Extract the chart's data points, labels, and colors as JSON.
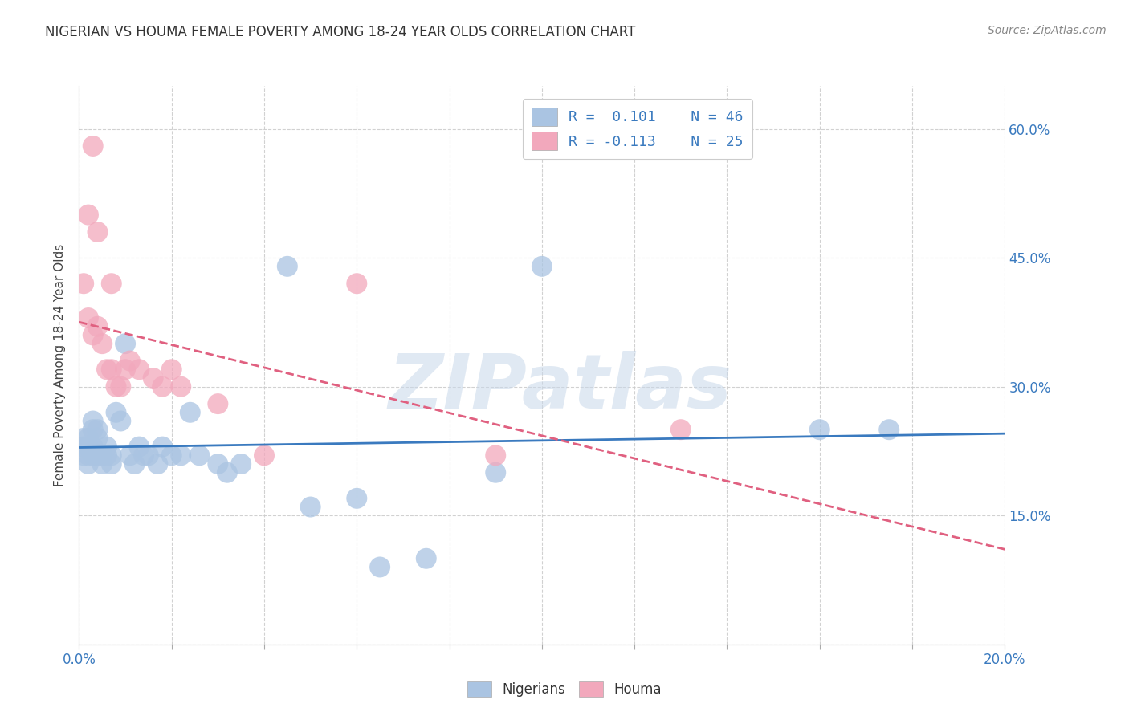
{
  "title": "NIGERIAN VS HOUMA FEMALE POVERTY AMONG 18-24 YEAR OLDS CORRELATION CHART",
  "source": "Source: ZipAtlas.com",
  "ylabel": "Female Poverty Among 18-24 Year Olds",
  "xlim": [
    0.0,
    0.2
  ],
  "ylim": [
    0.0,
    0.65
  ],
  "watermark": "ZIPatlas",
  "legend_r1": "R =  0.101",
  "legend_n1": "N = 46",
  "legend_r2": "R = -0.113",
  "legend_n2": "N = 25",
  "nigerian_color": "#aac4e2",
  "houma_color": "#f2a8bc",
  "nigerian_line_color": "#3a7abf",
  "houma_line_color": "#e06080",
  "background_color": "#ffffff",
  "nigerian_x": [
    0.001,
    0.001,
    0.001,
    0.002,
    0.002,
    0.002,
    0.002,
    0.003,
    0.003,
    0.003,
    0.003,
    0.004,
    0.004,
    0.004,
    0.005,
    0.005,
    0.006,
    0.006,
    0.007,
    0.007,
    0.008,
    0.009,
    0.01,
    0.011,
    0.012,
    0.013,
    0.014,
    0.015,
    0.017,
    0.018,
    0.02,
    0.022,
    0.024,
    0.026,
    0.03,
    0.032,
    0.035,
    0.045,
    0.05,
    0.06,
    0.065,
    0.075,
    0.09,
    0.1,
    0.16,
    0.175
  ],
  "nigerian_y": [
    0.24,
    0.23,
    0.22,
    0.24,
    0.23,
    0.22,
    0.21,
    0.26,
    0.25,
    0.23,
    0.22,
    0.25,
    0.24,
    0.22,
    0.22,
    0.21,
    0.23,
    0.22,
    0.22,
    0.21,
    0.27,
    0.26,
    0.35,
    0.22,
    0.21,
    0.23,
    0.22,
    0.22,
    0.21,
    0.23,
    0.22,
    0.22,
    0.27,
    0.22,
    0.21,
    0.2,
    0.21,
    0.44,
    0.16,
    0.17,
    0.09,
    0.1,
    0.2,
    0.44,
    0.25,
    0.25
  ],
  "houma_x": [
    0.001,
    0.002,
    0.002,
    0.003,
    0.003,
    0.004,
    0.004,
    0.005,
    0.006,
    0.007,
    0.007,
    0.008,
    0.009,
    0.01,
    0.011,
    0.013,
    0.016,
    0.018,
    0.02,
    0.022,
    0.03,
    0.04,
    0.06,
    0.09,
    0.13
  ],
  "houma_y": [
    0.42,
    0.5,
    0.38,
    0.58,
    0.36,
    0.48,
    0.37,
    0.35,
    0.32,
    0.42,
    0.32,
    0.3,
    0.3,
    0.32,
    0.33,
    0.32,
    0.31,
    0.3,
    0.32,
    0.3,
    0.28,
    0.22,
    0.42,
    0.22,
    0.25
  ]
}
